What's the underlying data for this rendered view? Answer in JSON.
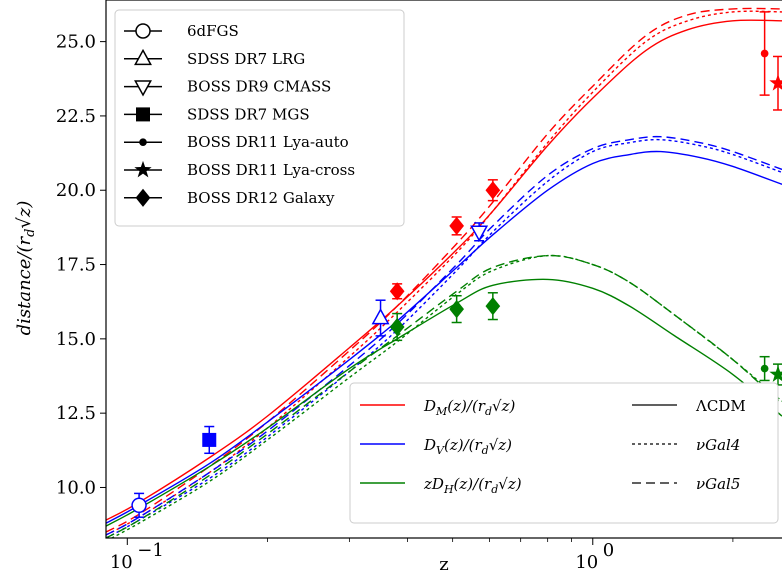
{
  "chart_data": {
    "type": "line",
    "xlabel": "z",
    "ylabel": "distance/(r_d√z)",
    "xscale": "log",
    "xlim": [
      0.09,
      2.55
    ],
    "ylim": [
      8.3,
      26.4
    ],
    "x_ticks": [
      {
        "value": 0.1,
        "label": "10",
        "exp": "−1"
      },
      {
        "value": 1.0,
        "label": "10",
        "exp": "0"
      }
    ],
    "y_ticks": [
      10.0,
      12.5,
      15.0,
      17.5,
      20.0,
      22.5,
      25.0
    ],
    "y_tick_labels": [
      "10.0",
      "12.5",
      "15.0",
      "17.5",
      "20.0",
      "22.5",
      "25.0"
    ],
    "colors": {
      "DM": "#ff0000",
      "DV": "#0000ff",
      "DH": "#008000"
    },
    "series_legend": [
      {
        "name": "D_M(z)/(r_d√z)",
        "color": "#ff0000"
      },
      {
        "name": "D_V(z)/(r_d√z)",
        "color": "#0000ff"
      },
      {
        "name": "zD_H(z)/(r_d√z)",
        "color": "#008000"
      }
    ],
    "model_legend": [
      {
        "name": "ΛCDM",
        "dash": "solid"
      },
      {
        "name": "νGal4",
        "dash": "dotted"
      },
      {
        "name": "νGal5",
        "dash": "dashed"
      }
    ],
    "marker_legend": [
      {
        "name": "6dFGS",
        "marker": "circle-open"
      },
      {
        "name": "SDSS DR7 LRG",
        "marker": "triangle-up-open"
      },
      {
        "name": "BOSS DR9 CMASS",
        "marker": "triangle-down-open"
      },
      {
        "name": "SDSS DR7 MGS",
        "marker": "square"
      },
      {
        "name": "BOSS DR11 Lya-auto",
        "marker": "dot"
      },
      {
        "name": "BOSS DR11 Lya-cross",
        "marker": "star"
      },
      {
        "name": "BOSS DR12 Galaxy",
        "marker": "diamond"
      }
    ],
    "curves": [
      {
        "quantity": "DM",
        "model": "ΛCDM",
        "x": [
          0.09,
          0.106,
          0.15,
          0.2,
          0.3,
          0.38,
          0.51,
          0.61,
          0.8,
          1.0,
          1.3,
          1.6,
          2.0,
          2.55
        ],
        "y": [
          8.9,
          9.5,
          11.0,
          12.4,
          14.7,
          16.1,
          18.0,
          19.3,
          21.5,
          23.1,
          24.7,
          25.4,
          25.7,
          25.7
        ]
      },
      {
        "quantity": "DM",
        "model": "νGal4",
        "x": [
          0.09,
          0.106,
          0.15,
          0.2,
          0.3,
          0.38,
          0.51,
          0.61,
          0.8,
          1.0,
          1.3,
          1.6,
          2.0,
          2.55
        ],
        "y": [
          8.4,
          9.0,
          10.5,
          12.0,
          14.4,
          15.9,
          17.9,
          19.3,
          21.6,
          23.3,
          25.0,
          25.7,
          26.0,
          26.0
        ]
      },
      {
        "quantity": "DM",
        "model": "νGal5",
        "x": [
          0.09,
          0.106,
          0.15,
          0.2,
          0.3,
          0.38,
          0.51,
          0.61,
          0.8,
          1.0,
          1.3,
          1.6,
          2.0,
          2.55
        ],
        "y": [
          8.5,
          9.1,
          10.7,
          12.2,
          14.6,
          16.1,
          18.2,
          19.6,
          21.9,
          23.5,
          25.2,
          25.9,
          26.1,
          26.1
        ]
      },
      {
        "quantity": "DV",
        "model": "ΛCDM",
        "x": [
          0.09,
          0.106,
          0.15,
          0.2,
          0.3,
          0.38,
          0.51,
          0.61,
          0.8,
          1.0,
          1.2,
          1.4,
          1.7,
          2.0,
          2.55
        ],
        "y": [
          8.8,
          9.4,
          10.8,
          12.2,
          14.3,
          15.6,
          17.4,
          18.5,
          20.0,
          20.9,
          21.2,
          21.3,
          21.1,
          20.8,
          20.2
        ]
      },
      {
        "quantity": "DV",
        "model": "νGal4",
        "x": [
          0.09,
          0.106,
          0.15,
          0.2,
          0.3,
          0.38,
          0.51,
          0.61,
          0.8,
          1.0,
          1.2,
          1.4,
          1.7,
          2.0,
          2.55
        ],
        "y": [
          8.3,
          8.9,
          10.3,
          11.7,
          13.9,
          15.3,
          17.3,
          18.6,
          20.3,
          21.3,
          21.6,
          21.7,
          21.5,
          21.2,
          20.6
        ]
      },
      {
        "quantity": "DV",
        "model": "νGal5",
        "x": [
          0.09,
          0.106,
          0.15,
          0.2,
          0.3,
          0.38,
          0.51,
          0.61,
          0.8,
          1.0,
          1.2,
          1.4,
          1.7,
          2.0,
          2.55
        ],
        "y": [
          8.4,
          9.0,
          10.5,
          11.9,
          14.1,
          15.5,
          17.5,
          18.8,
          20.5,
          21.4,
          21.7,
          21.8,
          21.6,
          21.3,
          20.7
        ]
      },
      {
        "quantity": "DH",
        "model": "ΛCDM",
        "x": [
          0.09,
          0.106,
          0.15,
          0.2,
          0.3,
          0.38,
          0.51,
          0.61,
          0.8,
          1.0,
          1.2,
          1.5,
          2.0,
          2.55
        ],
        "y": [
          8.7,
          9.3,
          10.7,
          12.0,
          14.0,
          15.0,
          16.2,
          16.8,
          17.0,
          16.7,
          16.1,
          15.1,
          13.8,
          12.4
        ]
      },
      {
        "quantity": "DH",
        "model": "νGal4",
        "x": [
          0.09,
          0.106,
          0.15,
          0.2,
          0.3,
          0.38,
          0.51,
          0.61,
          0.8,
          1.0,
          1.2,
          1.5,
          2.0,
          2.55
        ],
        "y": [
          8.2,
          8.8,
          10.2,
          11.6,
          13.7,
          14.9,
          16.5,
          17.3,
          17.8,
          17.5,
          16.9,
          15.8,
          14.3,
          12.9
        ]
      },
      {
        "quantity": "DH",
        "model": "νGal5",
        "x": [
          0.09,
          0.106,
          0.15,
          0.2,
          0.3,
          0.38,
          0.51,
          0.61,
          0.8,
          1.0,
          1.2,
          1.5,
          2.0,
          2.55
        ],
        "y": [
          8.3,
          8.9,
          10.4,
          11.8,
          13.9,
          15.1,
          16.6,
          17.4,
          17.8,
          17.5,
          16.9,
          15.8,
          14.3,
          12.8
        ]
      }
    ],
    "points": [
      {
        "survey": "6dFGS",
        "quantity": "DV",
        "marker": "circle-open",
        "x": 0.106,
        "y": 9.4,
        "err": 0.4
      },
      {
        "survey": "SDSS DR7 MGS",
        "quantity": "DV",
        "marker": "square",
        "x": 0.15,
        "y": 11.6,
        "err": 0.45
      },
      {
        "survey": "SDSS DR7 LRG",
        "quantity": "DV",
        "marker": "triangle-up-open",
        "x": 0.35,
        "y": 15.7,
        "err": 0.6
      },
      {
        "survey": "BOSS DR9 CMASS",
        "quantity": "DV",
        "marker": "triangle-down-open",
        "x": 0.57,
        "y": 18.6,
        "err": 0.3
      },
      {
        "survey": "BOSS DR12 Galaxy",
        "quantity": "DM",
        "marker": "diamond",
        "x": 0.38,
        "y": 16.6,
        "err": 0.25
      },
      {
        "survey": "BOSS DR12 Galaxy",
        "quantity": "DM",
        "marker": "diamond",
        "x": 0.51,
        "y": 18.8,
        "err": 0.3
      },
      {
        "survey": "BOSS DR12 Galaxy",
        "quantity": "DM",
        "marker": "diamond",
        "x": 0.61,
        "y": 20.0,
        "err": 0.35
      },
      {
        "survey": "BOSS DR12 Galaxy",
        "quantity": "DH",
        "marker": "diamond",
        "x": 0.38,
        "y": 15.4,
        "err": 0.45
      },
      {
        "survey": "BOSS DR12 Galaxy",
        "quantity": "DH",
        "marker": "diamond",
        "x": 0.51,
        "y": 16.0,
        "err": 0.45
      },
      {
        "survey": "BOSS DR12 Galaxy",
        "quantity": "DH",
        "marker": "diamond",
        "x": 0.61,
        "y": 16.1,
        "err": 0.45
      },
      {
        "survey": "BOSS DR11 Lya-auto",
        "quantity": "DM",
        "marker": "dot",
        "x": 2.34,
        "y": 24.6,
        "err": 1.4
      },
      {
        "survey": "BOSS DR11 Lya-cross",
        "quantity": "DM",
        "marker": "star",
        "x": 2.5,
        "y": 23.6,
        "err": 0.9
      },
      {
        "survey": "BOSS DR11 Lya-auto",
        "quantity": "DH",
        "marker": "dot",
        "x": 2.34,
        "y": 14.0,
        "err": 0.4
      },
      {
        "survey": "BOSS DR11 Lya-cross",
        "quantity": "DH",
        "marker": "star",
        "x": 2.5,
        "y": 13.8,
        "err": 0.35
      }
    ]
  }
}
